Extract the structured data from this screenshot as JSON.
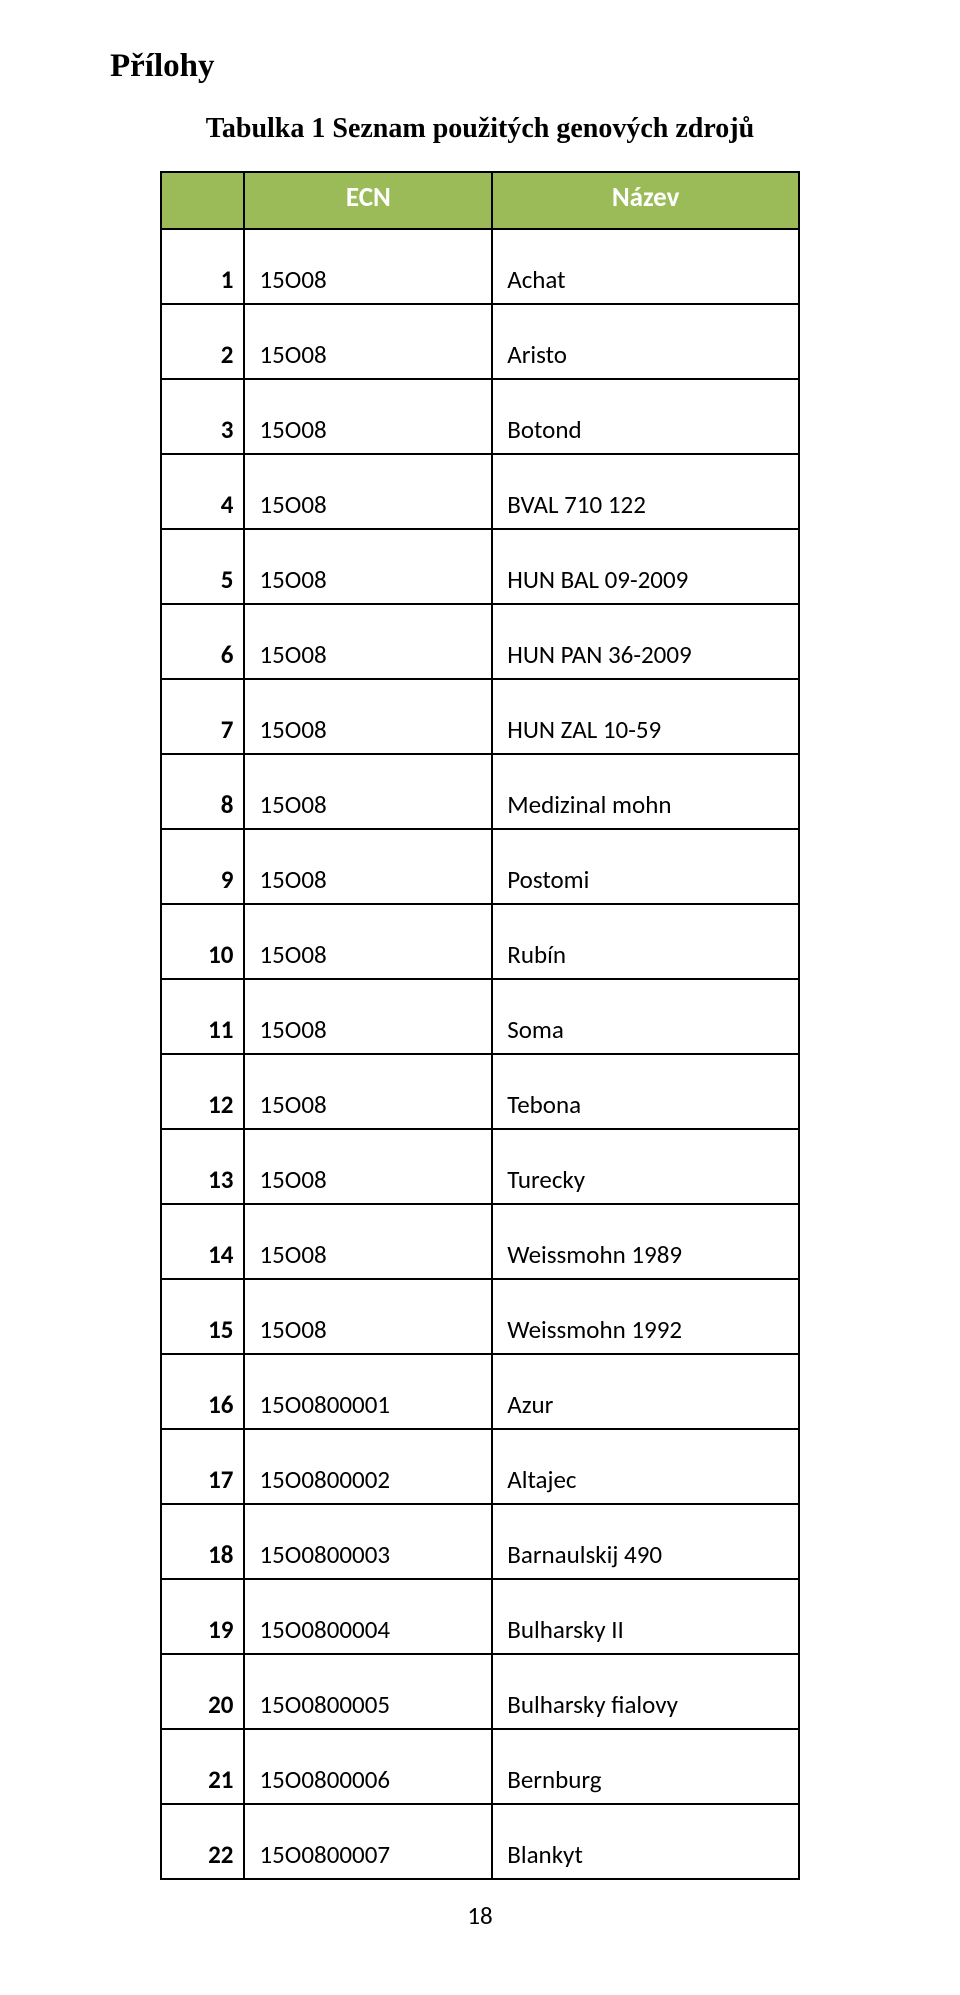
{
  "page": {
    "title": "Přílohy",
    "pageNumber": "18"
  },
  "table": {
    "caption": "Tabulka 1 Seznam použitých genových zdrojů",
    "headers": {
      "blank": "",
      "ecn": "ECN",
      "name": "Název"
    },
    "headerBg": "#9bbb59",
    "headerTextColor": "#ffffff",
    "borderColor": "#000000",
    "columns": [
      "num",
      "ecn",
      "name"
    ],
    "rows": [
      {
        "num": "1",
        "ecn": "15O08",
        "name": "Achat"
      },
      {
        "num": "2",
        "ecn": "15O08",
        "name": "Aristo"
      },
      {
        "num": "3",
        "ecn": "15O08",
        "name": "Botond"
      },
      {
        "num": "4",
        "ecn": "15O08",
        "name": "BVAL 710 122"
      },
      {
        "num": "5",
        "ecn": "15O08",
        "name": "HUN BAL 09-2009"
      },
      {
        "num": "6",
        "ecn": "15O08",
        "name": "HUN PAN 36-2009"
      },
      {
        "num": "7",
        "ecn": "15O08",
        "name": "HUN ZAL 10-59"
      },
      {
        "num": "8",
        "ecn": "15O08",
        "name": "Medizinal mohn"
      },
      {
        "num": "9",
        "ecn": "15O08",
        "name": "Postomi"
      },
      {
        "num": "10",
        "ecn": "15O08",
        "name": "Rubín"
      },
      {
        "num": "11",
        "ecn": "15O08",
        "name": "Soma"
      },
      {
        "num": "12",
        "ecn": "15O08",
        "name": "Tebona"
      },
      {
        "num": "13",
        "ecn": "15O08",
        "name": "Turecky"
      },
      {
        "num": "14",
        "ecn": "15O08",
        "name": "Weissmohn 1989"
      },
      {
        "num": "15",
        "ecn": "15O08",
        "name": "Weissmohn 1992"
      },
      {
        "num": "16",
        "ecn": "15O0800001",
        "name": "Azur"
      },
      {
        "num": "17",
        "ecn": "15O0800002",
        "name": "Altajec"
      },
      {
        "num": "18",
        "ecn": "15O0800003",
        "name": "Barnaulskij 490"
      },
      {
        "num": "19",
        "ecn": "15O0800004",
        "name": "Bulharsky II"
      },
      {
        "num": "20",
        "ecn": "15O0800005",
        "name": "Bulharsky fialovy"
      },
      {
        "num": "21",
        "ecn": "15O0800006",
        "name": "Bernburg"
      },
      {
        "num": "22",
        "ecn": "15O0800007",
        "name": "Blankyt"
      }
    ]
  }
}
